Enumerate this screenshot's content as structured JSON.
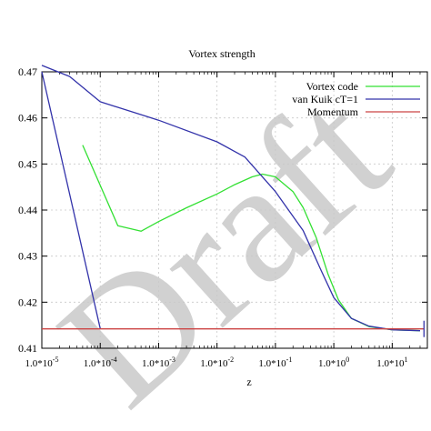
{
  "watermark": "Draft",
  "chart_data": {
    "type": "line",
    "title": "Vortex strength",
    "xlabel": "z",
    "ylabel": "",
    "x_scale": "log",
    "xlim": [
      1e-05,
      40
    ],
    "ylim": [
      0.41,
      0.47
    ],
    "grid": true,
    "legend_position": "top-right",
    "x_ticks": [
      {
        "value": 1e-05,
        "label": "1.0*10^-5"
      },
      {
        "value": 0.0001,
        "label": "1.0*10^-4"
      },
      {
        "value": 0.001,
        "label": "1.0*10^-3"
      },
      {
        "value": 0.01,
        "label": "1.0*10^-2"
      },
      {
        "value": 0.1,
        "label": "1.0*10^-1"
      },
      {
        "value": 1,
        "label": "1.0*10^0"
      },
      {
        "value": 10,
        "label": "1.0*10^1"
      }
    ],
    "y_ticks": [
      {
        "value": 0.41,
        "label": "0.41"
      },
      {
        "value": 0.42,
        "label": "0.42"
      },
      {
        "value": 0.43,
        "label": "0.43"
      },
      {
        "value": 0.44,
        "label": "0.44"
      },
      {
        "value": 0.45,
        "label": "0.45"
      },
      {
        "value": 0.46,
        "label": "0.46"
      },
      {
        "value": 0.47,
        "label": "0.47"
      }
    ],
    "series": [
      {
        "name": "Vortex code",
        "color": "#33e033",
        "points": [
          [
            5e-05,
            0.4541
          ],
          [
            0.0002,
            0.4366
          ],
          [
            0.0005,
            0.4354
          ],
          [
            0.001,
            0.4375
          ],
          [
            0.003,
            0.4405
          ],
          [
            0.01,
            0.4435
          ],
          [
            0.02,
            0.4455
          ],
          [
            0.04,
            0.4472
          ],
          [
            0.06,
            0.4478
          ],
          [
            0.1,
            0.4472
          ],
          [
            0.2,
            0.444
          ],
          [
            0.3,
            0.4405
          ],
          [
            0.5,
            0.434
          ],
          [
            0.8,
            0.426
          ],
          [
            1.2,
            0.4205
          ],
          [
            2,
            0.4165
          ],
          [
            4,
            0.4147
          ],
          [
            10,
            0.414
          ],
          [
            30,
            0.4138
          ]
        ]
      },
      {
        "name": "van Kuik cT=1",
        "color": "#3333aa",
        "points": [
          [
            1e-05,
            0.4714
          ],
          [
            3e-05,
            0.469
          ],
          [
            0.0001,
            0.4635
          ],
          [
            0.001,
            0.4595
          ],
          [
            0.01,
            0.4548
          ],
          [
            0.03,
            0.4515
          ],
          [
            0.1,
            0.444
          ],
          [
            0.3,
            0.4355
          ],
          [
            0.6,
            0.427
          ],
          [
            1,
            0.421
          ],
          [
            2,
            0.4165
          ],
          [
            4,
            0.4148
          ],
          [
            10,
            0.414
          ],
          [
            30,
            0.4138
          ]
        ]
      },
      {
        "name": "",
        "color": "#3333aa",
        "points": [
          [
            1e-05,
            0.47
          ],
          [
            0.0001,
            0.4143
          ]
        ]
      },
      {
        "name": "Momentum",
        "color": "#cc4444",
        "points": [
          [
            1e-05,
            0.4142
          ],
          [
            35,
            0.4142
          ]
        ]
      }
    ]
  }
}
